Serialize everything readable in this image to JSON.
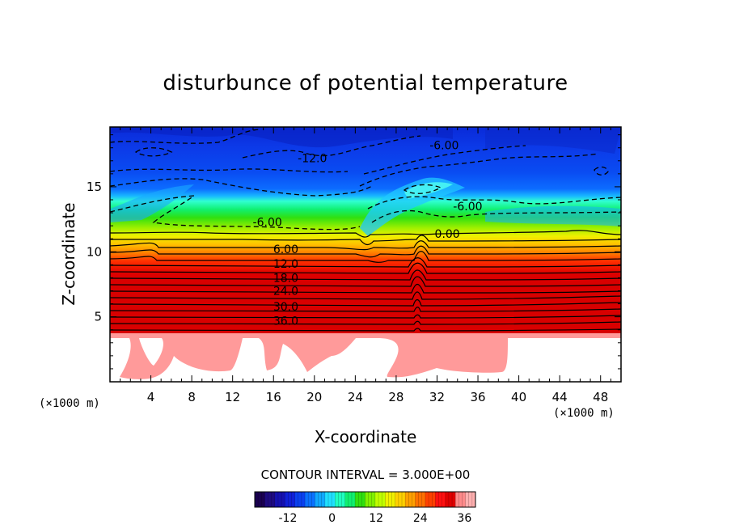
{
  "chart_data": {
    "type": "heatmap",
    "title": "disturbunce of potential temperature",
    "xlabel": "X-coordinate",
    "ylabel": "Z-coordinate",
    "x_unit": "(×1000 m)",
    "z_unit": "(×1000 m)",
    "xlim": [
      0,
      50
    ],
    "ylim": [
      0,
      19.6
    ],
    "x_ticks": [
      4,
      8,
      12,
      16,
      20,
      24,
      28,
      32,
      36,
      40,
      44,
      48
    ],
    "y_ticks": [
      5,
      10,
      15
    ],
    "contour_interval_text": "CONTOUR INTERVAL = 3.000E+00",
    "colorbar": {
      "min": -21,
      "max": 39,
      "ticks": [
        -12,
        0,
        12,
        24,
        36
      ],
      "colors": [
        "#1a0050",
        "#1e0a80",
        "#1510b0",
        "#1020d8",
        "#0a40f0",
        "#0a70ff",
        "#10a8ff",
        "#20e0ff",
        "#20ffc0",
        "#10f070",
        "#30e010",
        "#80f000",
        "#c0ff00",
        "#f0f000",
        "#ffd000",
        "#ffa000",
        "#ff7000",
        "#ff4000",
        "#ff1010",
        "#e00000",
        "#ff8a8a",
        "#ffb0b0"
      ]
    },
    "contour_labels": [
      {
        "text": "-12.0",
        "x": 19.8,
        "z": 17.2
      },
      {
        "text": "-6.00",
        "x": 32.7,
        "z": 18.2
      },
      {
        "text": "-6.00",
        "x": 35.0,
        "z": 13.5
      },
      {
        "text": "-6.00",
        "x": 15.4,
        "z": 12.3
      },
      {
        "text": "0.00",
        "x": 33.0,
        "z": 11.4
      },
      {
        "text": "6.00",
        "x": 17.2,
        "z": 10.2
      },
      {
        "text": "12.0",
        "x": 17.2,
        "z": 9.1
      },
      {
        "text": "18.0",
        "x": 17.2,
        "z": 8.0
      },
      {
        "text": "24.0",
        "x": 17.2,
        "z": 7.0
      },
      {
        "text": "30.0",
        "x": 17.2,
        "z": 5.8
      },
      {
        "text": "36.0",
        "x": 17.2,
        "z": 4.7
      }
    ]
  }
}
